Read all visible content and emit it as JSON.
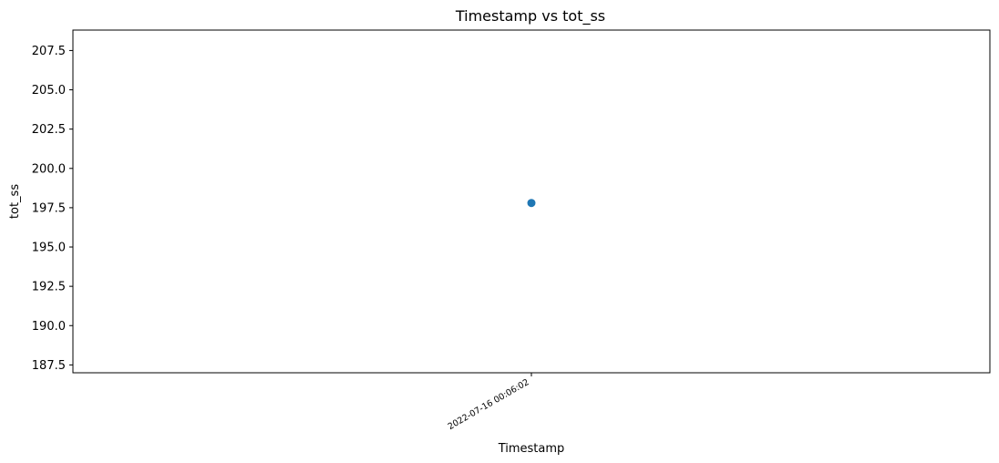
{
  "chart_data": {
    "type": "scatter",
    "title": "Timestamp vs tot_ss",
    "xlabel": "Timestamp",
    "ylabel": "tot_ss",
    "x_categories": [
      "2022-07-16 00:06:02"
    ],
    "series": [
      {
        "values": [
          197.8
        ],
        "color": "#1f77b4"
      }
    ],
    "ylim": [
      187.0,
      208.8
    ],
    "yticks": [
      187.5,
      190.0,
      192.5,
      195.0,
      197.5,
      200.0,
      202.5,
      205.0,
      207.5
    ],
    "ytick_labels": [
      "187.5",
      "190.0",
      "192.5",
      "195.0",
      "197.5",
      "200.0",
      "202.5",
      "205.0",
      "207.5"
    ],
    "grid": false,
    "legend": false
  }
}
